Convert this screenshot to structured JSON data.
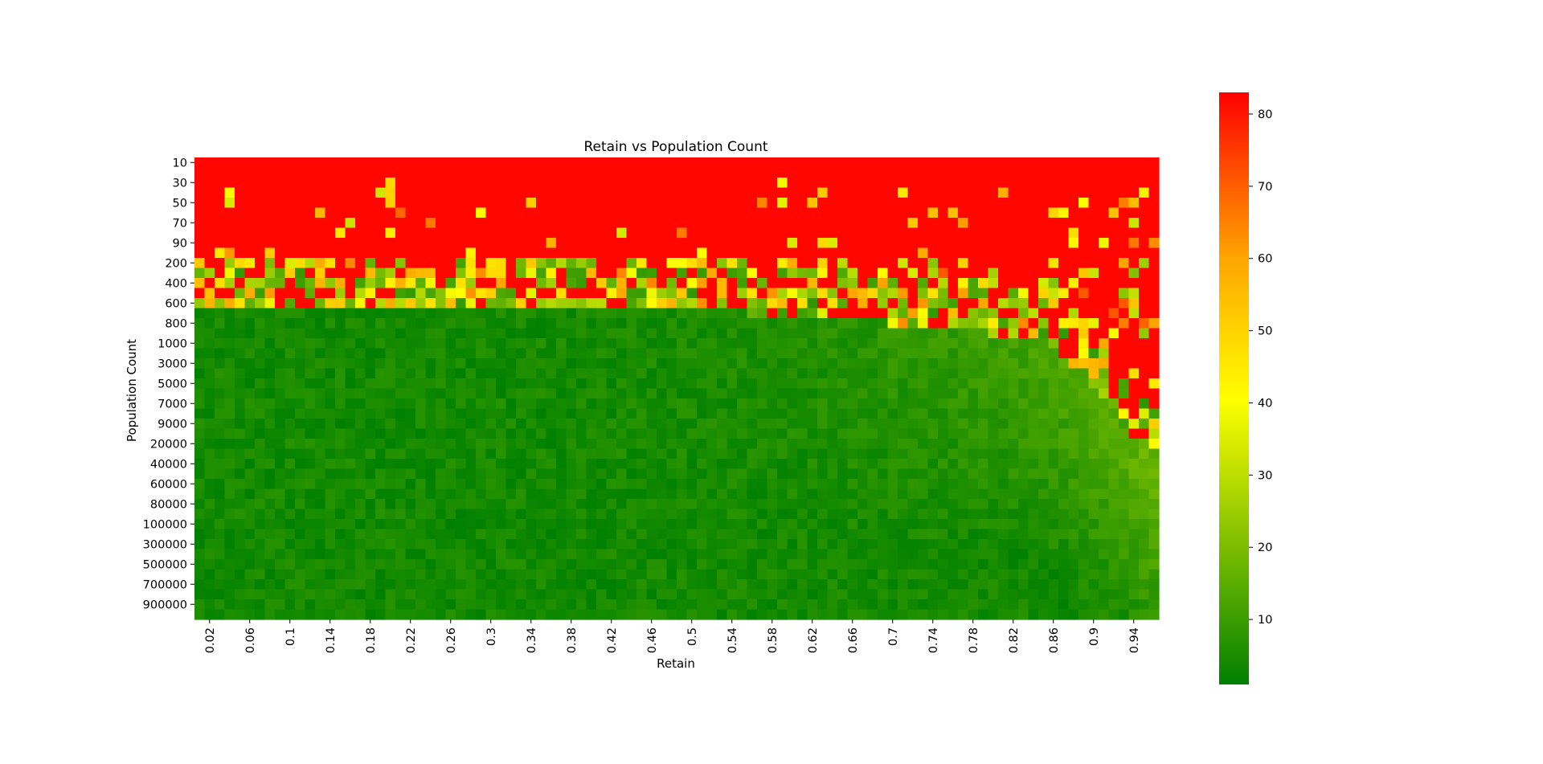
{
  "chart_data": {
    "type": "heatmap",
    "title": "Retain vs Population Count",
    "xlabel": "Retain",
    "ylabel": "Population Count",
    "x_tick_labels": [
      "0.02",
      "0.06",
      "0.1",
      "0.14",
      "0.18",
      "0.22",
      "0.26",
      "0.3",
      "0.34",
      "0.38",
      "0.42",
      "0.46",
      "0.5",
      "0.54",
      "0.58",
      "0.62",
      "0.66",
      "0.7",
      "0.74",
      "0.78",
      "0.82",
      "0.86",
      "0.9",
      "0.94"
    ],
    "x_values": [
      0.01,
      0.02,
      0.03,
      0.04,
      0.05,
      0.06,
      0.07,
      0.08,
      0.09,
      0.1,
      0.11,
      0.12,
      0.13,
      0.14,
      0.15,
      0.16,
      0.17,
      0.18,
      0.19,
      0.2,
      0.21,
      0.22,
      0.23,
      0.24,
      0.25,
      0.26,
      0.27,
      0.28,
      0.29,
      0.3,
      0.31,
      0.32,
      0.33,
      0.34,
      0.35,
      0.36,
      0.37,
      0.38,
      0.39,
      0.4,
      0.41,
      0.42,
      0.43,
      0.44,
      0.45,
      0.46,
      0.47,
      0.48,
      0.49,
      0.5,
      0.51,
      0.52,
      0.53,
      0.54,
      0.55,
      0.56,
      0.57,
      0.58,
      0.59,
      0.6,
      0.61,
      0.62,
      0.63,
      0.64,
      0.65,
      0.66,
      0.67,
      0.68,
      0.69,
      0.7,
      0.71,
      0.72,
      0.73,
      0.74,
      0.75,
      0.76,
      0.77,
      0.78,
      0.79,
      0.8,
      0.81,
      0.82,
      0.83,
      0.84,
      0.85,
      0.86,
      0.87,
      0.88,
      0.89,
      0.9,
      0.91,
      0.92,
      0.93,
      0.94,
      0.95,
      0.96
    ],
    "y_values": [
      10,
      20,
      30,
      40,
      50,
      60,
      70,
      80,
      90,
      100,
      200,
      300,
      400,
      500,
      600,
      700,
      800,
      900,
      1000,
      2000,
      3000,
      4000,
      5000,
      6000,
      7000,
      8000,
      9000,
      10000,
      20000,
      30000,
      40000,
      50000,
      60000,
      70000,
      80000,
      90000,
      100000,
      200000,
      300000,
      400000,
      500000,
      600000,
      700000,
      800000,
      900000,
      1000000
    ],
    "y_tick_labels": [
      "10",
      "30",
      "50",
      "70",
      "90",
      "200",
      "400",
      "600",
      "800",
      "1000",
      "3000",
      "5000",
      "7000",
      "9000",
      "20000",
      "40000",
      "60000",
      "80000",
      "100000",
      "300000",
      "500000",
      "700000",
      "900000"
    ],
    "colorbar": {
      "min": 1,
      "max": 83,
      "ticks": [
        10,
        20,
        30,
        40,
        50,
        60,
        70,
        80
      ],
      "colormap": [
        "#008000",
        "#ffff00",
        "#ffa500",
        "#ff0000"
      ]
    },
    "values_note": "",
    "grid": false
  }
}
